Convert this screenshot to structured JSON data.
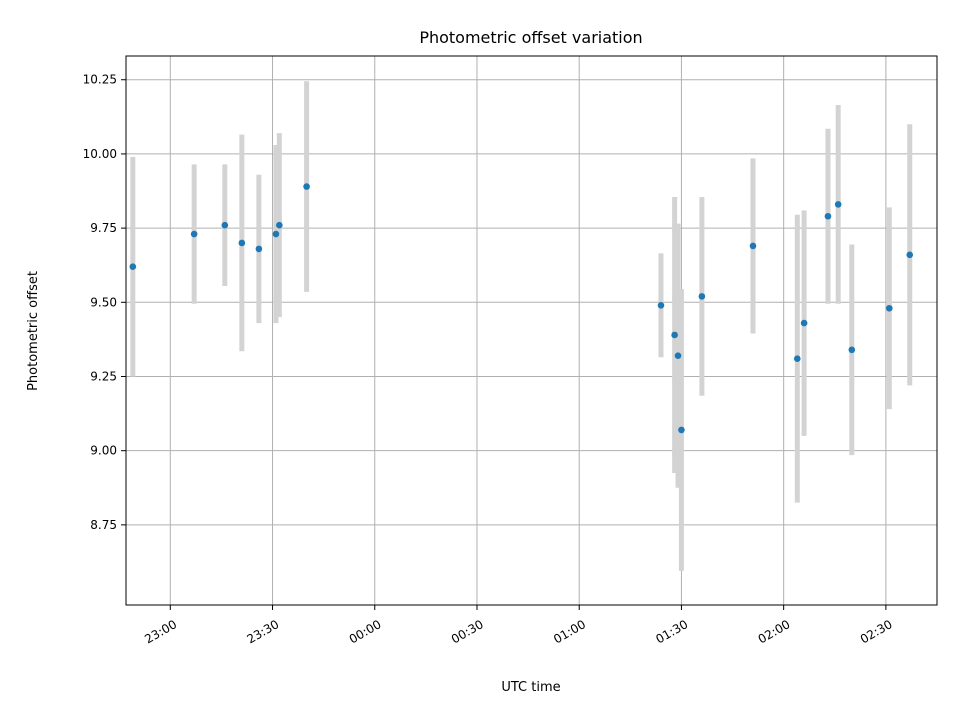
{
  "chart_data": {
    "type": "scatter",
    "title": "Photometric offset variation",
    "xlabel": "UTC time",
    "ylabel": "Photometric offset",
    "x_unit": "UTC time (HH:MM)",
    "xlim": [
      "22:47",
      "02:45"
    ],
    "ylim": [
      8.48,
      10.33
    ],
    "x_ticks": [
      "23:00",
      "23:30",
      "00:00",
      "00:30",
      "01:00",
      "01:30",
      "02:00",
      "02:30"
    ],
    "y_ticks": [
      8.75,
      9.0,
      9.25,
      9.5,
      9.75,
      10.0,
      10.25
    ],
    "y_tick_labels": [
      "8.75",
      "9.00",
      "9.25",
      "9.50",
      "9.75",
      "10.00",
      "10.25"
    ],
    "grid": true,
    "point_color": "#1f77b4",
    "errorbar_color": "#d3d3d3",
    "points": [
      {
        "time": "22:49",
        "y": 9.62,
        "yerr": 0.37
      },
      {
        "time": "23:07",
        "y": 9.73,
        "yerr": 0.235
      },
      {
        "time": "23:16",
        "y": 9.76,
        "yerr": 0.205
      },
      {
        "time": "23:21",
        "y": 9.7,
        "yerr": 0.365
      },
      {
        "time": "23:26",
        "y": 9.68,
        "yerr": 0.25
      },
      {
        "time": "23:31",
        "y": 9.73,
        "yerr": 0.3
      },
      {
        "time": "23:32",
        "y": 9.76,
        "yerr": 0.31
      },
      {
        "time": "23:40",
        "y": 9.89,
        "yerr": 0.355
      },
      {
        "time": "01:24",
        "y": 9.49,
        "yerr": 0.175
      },
      {
        "time": "01:28",
        "y": 9.39,
        "yerr": 0.465
      },
      {
        "time": "01:29",
        "y": 9.32,
        "yerr": 0.445
      },
      {
        "time": "01:30",
        "y": 9.07,
        "yerr": 0.475
      },
      {
        "time": "01:36",
        "y": 9.52,
        "yerr": 0.335
      },
      {
        "time": "01:51",
        "y": 9.69,
        "yerr": 0.295
      },
      {
        "time": "02:04",
        "y": 9.31,
        "yerr": 0.485
      },
      {
        "time": "02:06",
        "y": 9.43,
        "yerr": 0.38
      },
      {
        "time": "02:13",
        "y": 9.79,
        "yerr": 0.295
      },
      {
        "time": "02:16",
        "y": 9.83,
        "yerr": 0.335
      },
      {
        "time": "02:20",
        "y": 9.34,
        "yerr": 0.355
      },
      {
        "time": "02:31",
        "y": 9.48,
        "yerr": 0.34
      },
      {
        "time": "02:37",
        "y": 9.66,
        "yerr": 0.44
      }
    ]
  }
}
